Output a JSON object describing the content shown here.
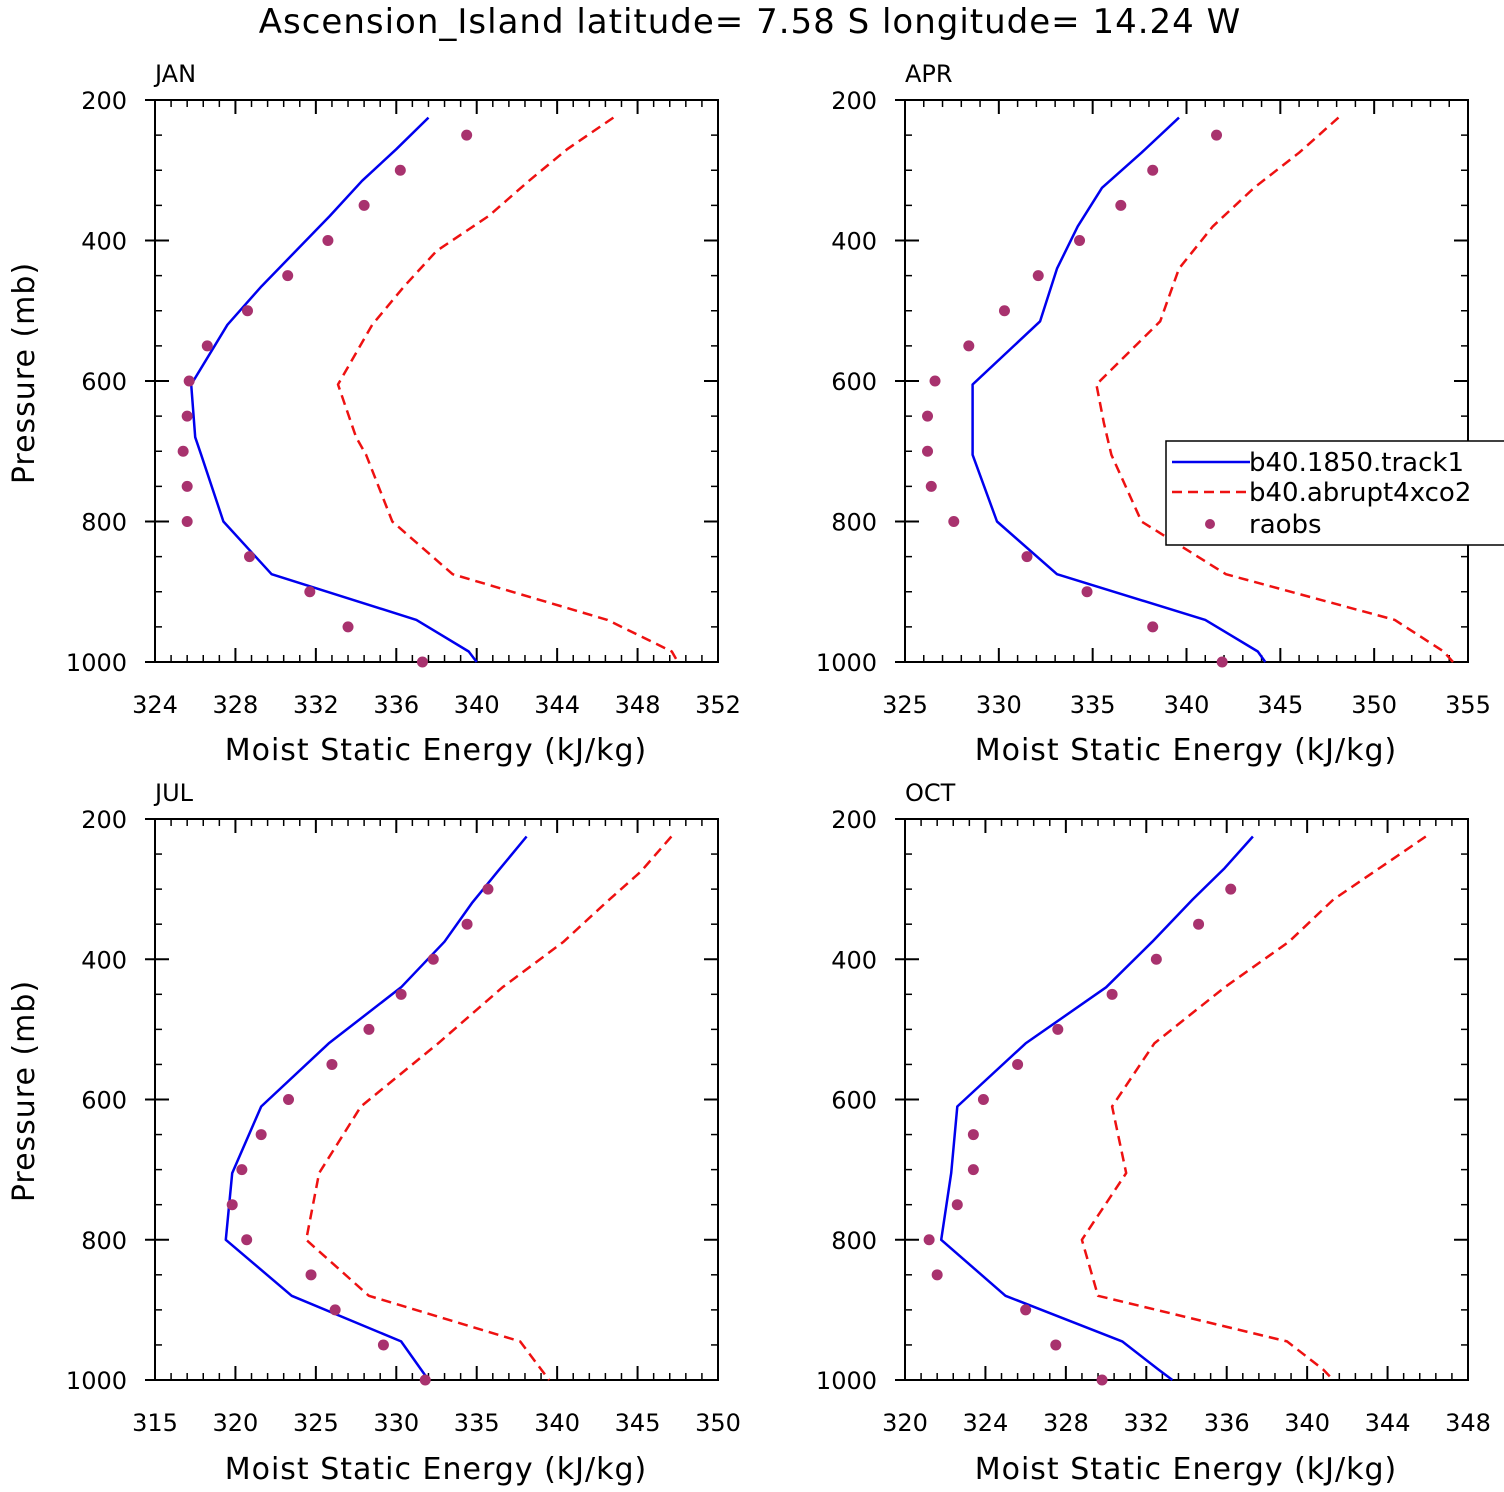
{
  "title": "Ascension_Island  latitude= 7.58 S longitude= 14.24 W",
  "colors": {
    "track1": "#0000ee",
    "abrupt4xco2": "#ee1111",
    "raobs": "#a8326e"
  },
  "legend": {
    "placement": "right-middle of APR panel",
    "entries": [
      "b40.1850.track1",
      "b40.abrupt4xco2",
      "raobs"
    ]
  },
  "chart_data": [
    {
      "type": "line",
      "panel": "JAN",
      "xlabel": "Moist Static Energy (kJ/kg)",
      "ylabel": "Pressure (mb)",
      "xlim": [
        324,
        352
      ],
      "xticks": [
        324,
        328,
        332,
        336,
        340,
        344,
        348,
        352
      ],
      "ylim": [
        1000,
        200
      ],
      "yticks": [
        200,
        400,
        600,
        800,
        1000
      ],
      "series": [
        {
          "name": "b40.1850.track1",
          "style": "solid",
          "x": [
            337.6,
            336.0,
            334.3,
            332.7,
            331.0,
            329.3,
            327.6,
            325.8,
            326.0,
            326.3,
            327.4,
            329.8,
            337.0,
            339.6,
            340.0
          ],
          "y": [
            225,
            270,
            315,
            365,
            415,
            465,
            520,
            605,
            680,
            705,
            800,
            875,
            940,
            985,
            1000
          ]
        },
        {
          "name": "b40.abrupt4xco2",
          "style": "dashed",
          "x": [
            346.8,
            344.5,
            342.6,
            340.6,
            338.0,
            336.4,
            334.8,
            333.1,
            334.0,
            334.5,
            335.8,
            338.8,
            346.5,
            349.7,
            350.0
          ],
          "y": [
            225,
            270,
            315,
            365,
            415,
            465,
            520,
            605,
            680,
            705,
            800,
            875,
            940,
            985,
            1000
          ]
        },
        {
          "name": "raobs",
          "style": "markers",
          "x": [
            339.5,
            336.2,
            334.4,
            332.6,
            330.6,
            328.6,
            326.6,
            325.7,
            325.6,
            325.4,
            325.6,
            325.6,
            328.7,
            331.7,
            333.6,
            337.3
          ],
          "y": [
            250,
            300,
            350,
            400,
            450,
            500,
            550,
            600,
            650,
            700,
            750,
            800,
            850,
            900,
            950,
            1000
          ]
        }
      ]
    },
    {
      "type": "line",
      "panel": "APR",
      "xlabel": "Moist Static Energy (kJ/kg)",
      "ylabel": "",
      "xlim": [
        325,
        355
      ],
      "xticks": [
        325,
        330,
        335,
        340,
        345,
        350,
        355
      ],
      "ylim": [
        1000,
        200
      ],
      "yticks": [
        200,
        400,
        600,
        800,
        1000
      ],
      "series": [
        {
          "name": "b40.1850.track1",
          "style": "solid",
          "x": [
            339.6,
            337.6,
            335.5,
            334.2,
            333.1,
            332.2,
            328.6,
            328.6,
            328.6,
            329.9,
            333.1,
            341.0,
            343.8,
            344.2
          ],
          "y": [
            225,
            275,
            325,
            380,
            440,
            515,
            605,
            660,
            705,
            800,
            875,
            940,
            985,
            1000
          ]
        },
        {
          "name": "b40.abrupt4xco2",
          "style": "dashed",
          "x": [
            348.1,
            346.0,
            343.6,
            341.4,
            339.6,
            338.6,
            335.2,
            335.6,
            336.0,
            337.6,
            342.1,
            351.1,
            353.7,
            354.2
          ],
          "y": [
            225,
            275,
            325,
            380,
            440,
            515,
            605,
            660,
            705,
            800,
            875,
            940,
            985,
            1000
          ]
        },
        {
          "name": "raobs",
          "style": "markers",
          "x": [
            341.6,
            338.2,
            336.5,
            334.3,
            332.1,
            330.3,
            328.4,
            326.6,
            326.2,
            326.2,
            326.4,
            327.6,
            331.5,
            334.7,
            338.2,
            341.9
          ],
          "y": [
            250,
            300,
            350,
            400,
            450,
            500,
            550,
            600,
            650,
            700,
            750,
            800,
            850,
            900,
            950,
            1000
          ]
        }
      ]
    },
    {
      "type": "line",
      "panel": "JUL",
      "xlabel": "Moist Static Energy (kJ/kg)",
      "ylabel": "Pressure (mb)",
      "xlim": [
        315,
        350
      ],
      "xticks": [
        315,
        320,
        325,
        330,
        335,
        340,
        345,
        350
      ],
      "ylim": [
        1000,
        200
      ],
      "yticks": [
        200,
        400,
        600,
        800,
        1000
      ],
      "series": [
        {
          "name": "b40.1850.track1",
          "style": "solid",
          "x": [
            338.1,
            336.3,
            334.7,
            333.0,
            330.3,
            325.8,
            321.6,
            319.8,
            319.4,
            323.5,
            330.3,
            332.0
          ],
          "y": [
            225,
            275,
            320,
            375,
            440,
            520,
            610,
            705,
            800,
            880,
            945,
            1000
          ]
        },
        {
          "name": "b40.abrupt4xco2",
          "style": "dashed",
          "x": [
            347.1,
            345.2,
            343.0,
            340.4,
            336.6,
            332.6,
            327.8,
            325.2,
            324.4,
            328.3,
            337.7,
            339.5
          ],
          "y": [
            225,
            275,
            320,
            375,
            440,
            520,
            610,
            705,
            800,
            880,
            945,
            1000
          ]
        },
        {
          "name": "raobs",
          "style": "markers",
          "x": [
            335.7,
            334.4,
            332.3,
            330.3,
            328.3,
            326.0,
            323.3,
            321.6,
            320.4,
            319.8,
            320.7,
            324.7,
            326.2,
            329.2,
            331.8
          ],
          "y": [
            300,
            350,
            400,
            450,
            500,
            550,
            600,
            650,
            700,
            750,
            800,
            850,
            900,
            950,
            1000
          ]
        }
      ]
    },
    {
      "type": "line",
      "panel": "OCT",
      "xlabel": "Moist Static Energy (kJ/kg)",
      "ylabel": "",
      "xlim": [
        320,
        348
      ],
      "xticks": [
        320,
        324,
        328,
        332,
        336,
        340,
        344,
        348
      ],
      "ylim": [
        1000,
        200
      ],
      "yticks": [
        200,
        400,
        600,
        800,
        1000
      ],
      "series": [
        {
          "name": "b40.1850.track1",
          "style": "solid",
          "x": [
            337.3,
            335.9,
            334.3,
            332.3,
            330.0,
            326.0,
            322.6,
            322.3,
            321.8,
            325.0,
            330.8,
            332.6,
            333.3
          ],
          "y": [
            225,
            270,
            315,
            375,
            440,
            520,
            610,
            705,
            800,
            880,
            945,
            985,
            1000
          ]
        },
        {
          "name": "b40.abrupt4xco2",
          "style": "dashed",
          "x": [
            345.9,
            343.6,
            341.3,
            339.1,
            335.9,
            332.4,
            330.3,
            331.0,
            328.8,
            329.6,
            339.0,
            340.8,
            341.3
          ],
          "y": [
            225,
            270,
            315,
            375,
            440,
            520,
            610,
            705,
            800,
            880,
            945,
            985,
            1000
          ]
        },
        {
          "name": "raobs",
          "style": "markers",
          "x": [
            336.2,
            334.6,
            332.5,
            330.3,
            327.6,
            325.6,
            323.9,
            323.4,
            323.4,
            322.6,
            321.2,
            321.6,
            326.0,
            327.5,
            329.8
          ],
          "y": [
            300,
            350,
            400,
            450,
            500,
            550,
            600,
            650,
            700,
            750,
            800,
            850,
            900,
            950,
            1000
          ]
        }
      ]
    }
  ]
}
